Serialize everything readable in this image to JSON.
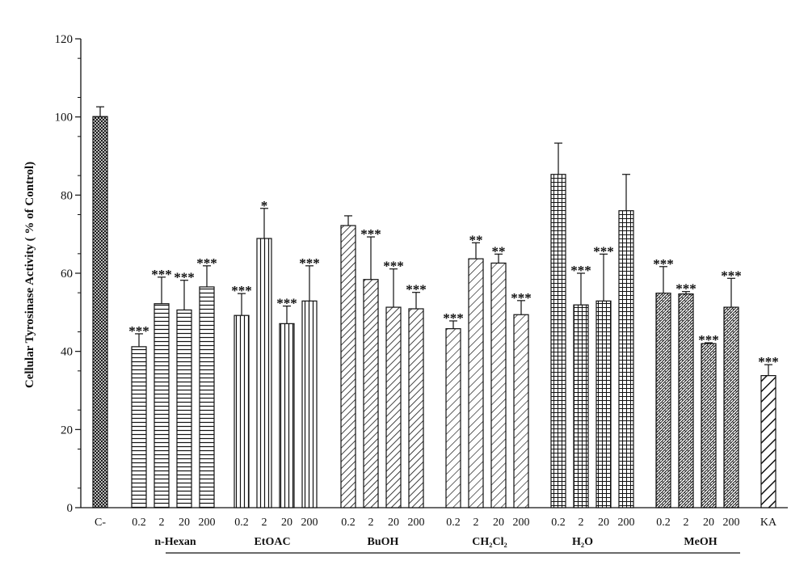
{
  "chart_data": {
    "type": "bar",
    "ylabel": "Cellular Tyrosinase Activity ( % of Control)",
    "ylim": [
      0,
      120
    ],
    "yticks": [
      0,
      20,
      40,
      60,
      80,
      100,
      120
    ],
    "grid": false,
    "bar_color": "#111111",
    "groups": [
      {
        "name": "",
        "fill": "crosshatch-dense",
        "bars": [
          {
            "label": "C-",
            "value": 100.1,
            "error": 2.5,
            "sig": ""
          }
        ]
      },
      {
        "name": "n-Hexan",
        "fill": "horizontal-lines",
        "bars": [
          {
            "label": "0.2",
            "value": 41.2,
            "error": 3.3,
            "sig": "***"
          },
          {
            "label": "2",
            "value": 52.2,
            "error": 6.8,
            "sig": "***"
          },
          {
            "label": "20",
            "value": 50.6,
            "error": 7.6,
            "sig": "***"
          },
          {
            "label": "200",
            "value": 56.5,
            "error": 5.4,
            "sig": "***"
          }
        ]
      },
      {
        "name": "EtOAC",
        "fill": "vertical-lines",
        "bars": [
          {
            "label": "0.2",
            "value": 49.2,
            "error": 5.6,
            "sig": "***"
          },
          {
            "label": "2",
            "value": 68.9,
            "error": 7.7,
            "sig": "*"
          },
          {
            "label": "20",
            "value": 47.1,
            "error": 4.5,
            "sig": "***"
          },
          {
            "label": "200",
            "value": 52.9,
            "error": 9.0,
            "sig": "***"
          }
        ]
      },
      {
        "name": "BuOH",
        "fill": "diagonal-lines",
        "bars": [
          {
            "label": "0.2",
            "value": 72.2,
            "error": 2.5,
            "sig": ""
          },
          {
            "label": "2",
            "value": 58.4,
            "error": 10.9,
            "sig": "***"
          },
          {
            "label": "20",
            "value": 51.3,
            "error": 9.8,
            "sig": "***"
          },
          {
            "label": "200",
            "value": 50.9,
            "error": 4.2,
            "sig": "***"
          }
        ]
      },
      {
        "name": "CH₂Cl₂",
        "fill": "diagonal-lines-wide",
        "bars": [
          {
            "label": "0.2",
            "value": 45.8,
            "error": 2.0,
            "sig": "***"
          },
          {
            "label": "2",
            "value": 63.7,
            "error": 4.1,
            "sig": "**"
          },
          {
            "label": "20",
            "value": 62.6,
            "error": 2.3,
            "sig": "**"
          },
          {
            "label": "200",
            "value": 49.4,
            "error": 3.6,
            "sig": "***"
          }
        ]
      },
      {
        "name": "H₂O",
        "fill": "grid",
        "bars": [
          {
            "label": "0.2",
            "value": 85.3,
            "error": 8.0,
            "sig": ""
          },
          {
            "label": "2",
            "value": 51.9,
            "error": 8.1,
            "sig": "***"
          },
          {
            "label": "20",
            "value": 52.9,
            "error": 12.0,
            "sig": "***"
          },
          {
            "label": "200",
            "value": 76.0,
            "error": 9.3,
            "sig": ""
          }
        ]
      },
      {
        "name": "MeOH",
        "fill": "zigzag",
        "bars": [
          {
            "label": "0.2",
            "value": 54.9,
            "error": 6.8,
            "sig": "***"
          },
          {
            "label": "2",
            "value": 54.7,
            "error": 0.6,
            "sig": "***"
          },
          {
            "label": "20",
            "value": 42.0,
            "error": 0.2,
            "sig": "***"
          },
          {
            "label": "200",
            "value": 51.3,
            "error": 7.4,
            "sig": "***"
          }
        ]
      },
      {
        "name": "",
        "fill": "bold-diagonal",
        "bars": [
          {
            "label": "KA",
            "value": 33.8,
            "error": 2.8,
            "sig": "***"
          }
        ]
      }
    ]
  }
}
